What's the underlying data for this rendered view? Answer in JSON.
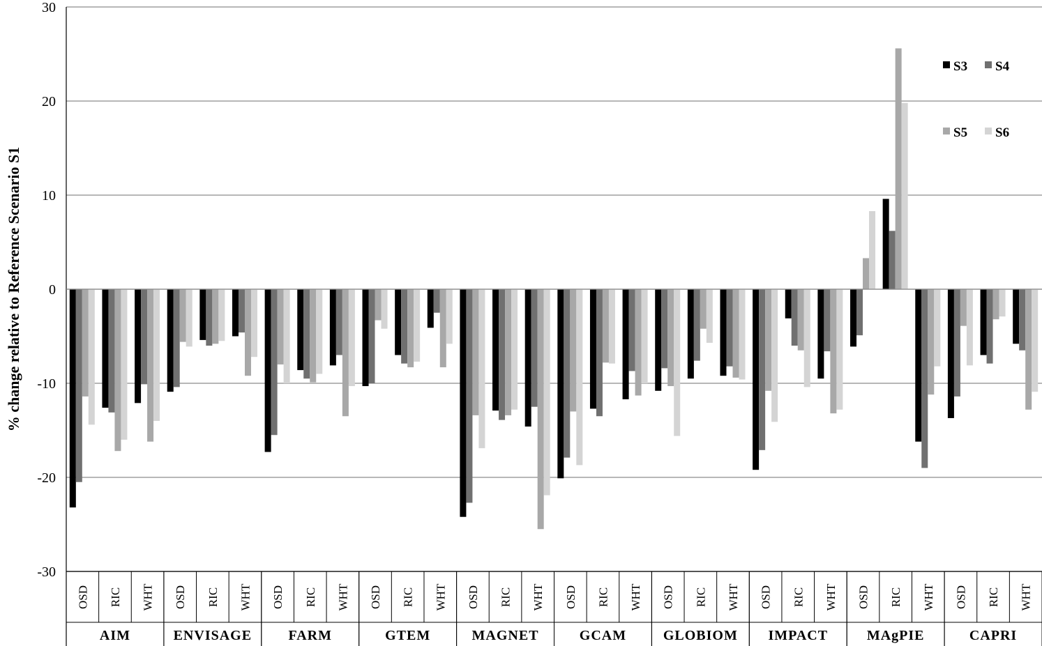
{
  "chart_data": {
    "type": "bar",
    "ylabel": "% change relative to Reference Scenario S1",
    "ylim": [
      -30,
      30
    ],
    "yticks": [
      30,
      20,
      10,
      0,
      -10,
      -20,
      -30
    ],
    "grid": true,
    "legend_position": "top-right",
    "groups": [
      "AIM",
      "ENVISAGE",
      "FARM",
      "GTEM",
      "MAGNET",
      "GCAM",
      "GLOBIOM",
      "IMPACT",
      "MAgPIE",
      "CAPRI"
    ],
    "subcategories": [
      "OSD",
      "RIC",
      "WHT"
    ],
    "series": [
      {
        "name": "S3",
        "color": "#000000",
        "values": [
          [
            -23.2,
            -12.6,
            -12.1
          ],
          [
            -10.9,
            -5.4,
            -5.0
          ],
          [
            -17.3,
            -8.6,
            -8.1
          ],
          [
            -10.3,
            -7.0,
            -4.1
          ],
          [
            -24.2,
            -12.9,
            -14.6
          ],
          [
            -20.1,
            -12.7,
            -11.7
          ],
          [
            -10.8,
            -9.5,
            -9.2
          ],
          [
            -19.2,
            -3.1,
            -9.5
          ],
          [
            -6.1,
            9.6,
            -16.2
          ],
          [
            -13.7,
            -7.0,
            -5.8
          ]
        ]
      },
      {
        "name": "S4",
        "color": "#707070",
        "values": [
          [
            -20.5,
            -13.1,
            -10.1
          ],
          [
            -10.4,
            -6.0,
            -4.6
          ],
          [
            -15.5,
            -9.5,
            -7.0
          ],
          [
            -10.0,
            -7.9,
            -2.5
          ],
          [
            -22.7,
            -13.9,
            -12.5
          ],
          [
            -17.9,
            -13.5,
            -8.7
          ],
          [
            -8.4,
            -7.6,
            -8.2
          ],
          [
            -17.1,
            -6.0,
            -6.6
          ],
          [
            -4.9,
            6.2,
            -19.0
          ],
          [
            -11.4,
            -7.9,
            -6.5
          ]
        ]
      },
      {
        "name": "S5",
        "color": "#a8a8a8",
        "values": [
          [
            -11.4,
            -17.2,
            -16.2
          ],
          [
            -5.6,
            -5.8,
            -9.2
          ],
          [
            -8.0,
            -9.9,
            -13.5
          ],
          [
            -3.3,
            -8.3,
            -8.3
          ],
          [
            -13.4,
            -13.4,
            -25.5
          ],
          [
            -13.0,
            -7.8,
            -11.3
          ],
          [
            -10.3,
            -4.2,
            -9.4
          ],
          [
            -10.8,
            -6.5,
            -13.2
          ],
          [
            3.3,
            25.6,
            -11.2
          ],
          [
            -3.9,
            -3.2,
            -12.8
          ]
        ]
      },
      {
        "name": "S6",
        "color": "#d4d4d4",
        "values": [
          [
            -14.4,
            -16.0,
            -14.0
          ],
          [
            -6.1,
            -5.5,
            -7.2
          ],
          [
            -10.0,
            -9.0,
            -10.3
          ],
          [
            -4.2,
            -7.7,
            -5.8
          ],
          [
            -16.9,
            -12.8,
            -21.9
          ],
          [
            -18.7,
            -7.9,
            -10.0
          ],
          [
            -15.6,
            -5.7,
            -9.6
          ],
          [
            -14.1,
            -10.4,
            -12.8
          ],
          [
            8.3,
            19.8,
            -8.2
          ],
          [
            -8.1,
            -2.9,
            -10.9
          ]
        ]
      }
    ]
  }
}
